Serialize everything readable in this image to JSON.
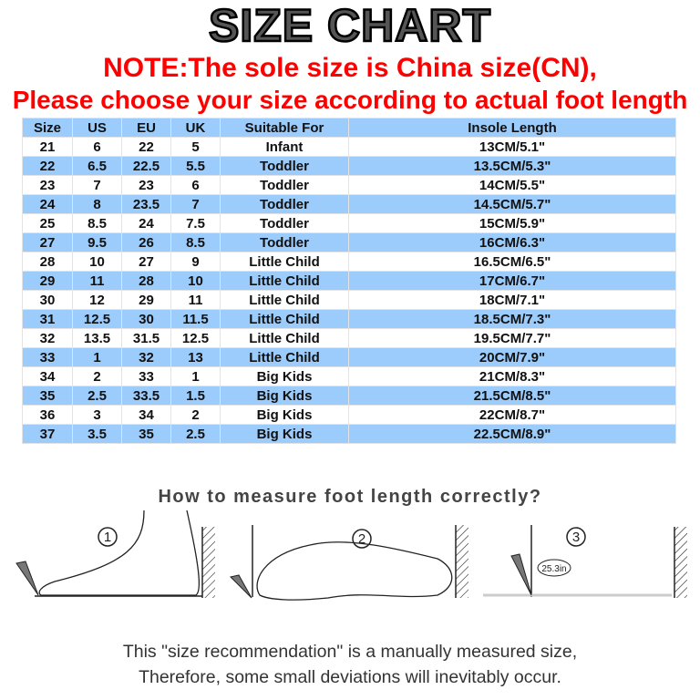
{
  "title": "SIZE CHART",
  "note_line1": "NOTE:The sole size is China size(CN),",
  "note_line2": "Please choose your size according to actual foot length",
  "table": {
    "headers": [
      "Size",
      "US",
      "EU",
      "UK",
      "Suitable For",
      "Insole Length"
    ],
    "rows": [
      [
        "21",
        "6",
        "22",
        "5",
        "Infant",
        "13CM/5.1\""
      ],
      [
        "22",
        "6.5",
        "22.5",
        "5.5",
        "Toddler",
        "13.5CM/5.3\""
      ],
      [
        "23",
        "7",
        "23",
        "6",
        "Toddler",
        "14CM/5.5\""
      ],
      [
        "24",
        "8",
        "23.5",
        "7",
        "Toddler",
        "14.5CM/5.7\""
      ],
      [
        "25",
        "8.5",
        "24",
        "7.5",
        "Toddler",
        "15CM/5.9\""
      ],
      [
        "27",
        "9.5",
        "26",
        "8.5",
        "Toddler",
        "16CM/6.3\""
      ],
      [
        "28",
        "10",
        "27",
        "9",
        "Little Child",
        "16.5CM/6.5\""
      ],
      [
        "29",
        "11",
        "28",
        "10",
        "Little Child",
        "17CM/6.7\""
      ],
      [
        "30",
        "12",
        "29",
        "11",
        "Little Child",
        "18CM/7.1\""
      ],
      [
        "31",
        "12.5",
        "30",
        "11.5",
        "Little Child",
        "18.5CM/7.3\""
      ],
      [
        "32",
        "13.5",
        "31.5",
        "12.5",
        "Little Child",
        "19.5CM/7.7\""
      ],
      [
        "33",
        "1",
        "32",
        "13",
        "Little Child",
        "20CM/7.9\""
      ],
      [
        "34",
        "2",
        "33",
        "1",
        "Big Kids",
        "21CM/8.3\""
      ],
      [
        "35",
        "2.5",
        "33.5",
        "1.5",
        "Big Kids",
        "21.5CM/8.5\""
      ],
      [
        "36",
        "3",
        "34",
        "2",
        "Big Kids",
        "22CM/8.7\""
      ],
      [
        "37",
        "3.5",
        "35",
        "2.5",
        "Big Kids",
        "22.5CM/8.9\""
      ]
    ]
  },
  "howto": "How to measure foot length correctly?",
  "steps": [
    "1",
    "2",
    "3"
  ],
  "measure_bubble": "25.3in",
  "footnote_line1": "This \"size recommendation\" is a manually measured size,",
  "footnote_line2": "Therefore, some small deviations will inevitably occur.",
  "colors": {
    "header_row": "#9cccfb",
    "note": "#ff0000"
  }
}
